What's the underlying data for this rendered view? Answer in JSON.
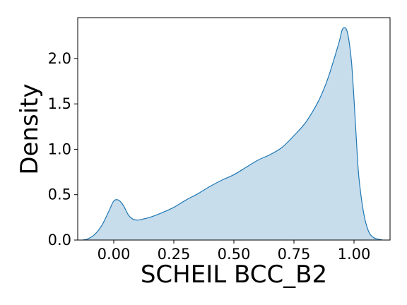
{
  "chart_data": {
    "type": "area",
    "title": "",
    "xlabel": "SCHEIL BCC_B2",
    "ylabel": "Density",
    "xlim": [
      -0.15,
      1.15
    ],
    "ylim": [
      0,
      2.45
    ],
    "x_ticks": [
      0.0,
      0.25,
      0.5,
      0.75,
      1.0
    ],
    "x_tick_labels": [
      "0.00",
      "0.25",
      "0.50",
      "0.75",
      "1.00"
    ],
    "y_ticks": [
      0.0,
      0.5,
      1.0,
      1.5,
      2.0
    ],
    "y_tick_labels": [
      "0.0",
      "0.5",
      "1.0",
      "1.5",
      "2.0"
    ],
    "grid": false,
    "legend": "none",
    "colors": {
      "line": "#1f77b4",
      "fill": "#1f77b4",
      "fill_opacity": 0.25
    },
    "series": [
      {
        "x": [
          -0.13,
          -0.11,
          -0.08,
          -0.05,
          -0.02,
          0.0,
          0.02,
          0.04,
          0.06,
          0.08,
          0.1,
          0.12,
          0.15,
          0.2,
          0.25,
          0.3,
          0.35,
          0.4,
          0.45,
          0.5,
          0.55,
          0.6,
          0.65,
          0.7,
          0.75,
          0.8,
          0.85,
          0.88,
          0.9,
          0.92,
          0.94,
          0.95,
          0.96,
          0.97,
          0.98,
          0.99,
          1.0,
          1.01,
          1.02,
          1.04,
          1.06,
          1.08,
          1.1,
          1.12
        ],
        "y": [
          0.0,
          0.01,
          0.06,
          0.16,
          0.32,
          0.43,
          0.44,
          0.38,
          0.28,
          0.23,
          0.22,
          0.23,
          0.25,
          0.3,
          0.36,
          0.44,
          0.51,
          0.59,
          0.66,
          0.72,
          0.8,
          0.88,
          0.94,
          1.02,
          1.15,
          1.3,
          1.52,
          1.7,
          1.85,
          2.02,
          2.2,
          2.31,
          2.34,
          2.31,
          2.18,
          1.95,
          1.55,
          1.1,
          0.7,
          0.3,
          0.1,
          0.03,
          0.01,
          0.0
        ]
      }
    ]
  }
}
